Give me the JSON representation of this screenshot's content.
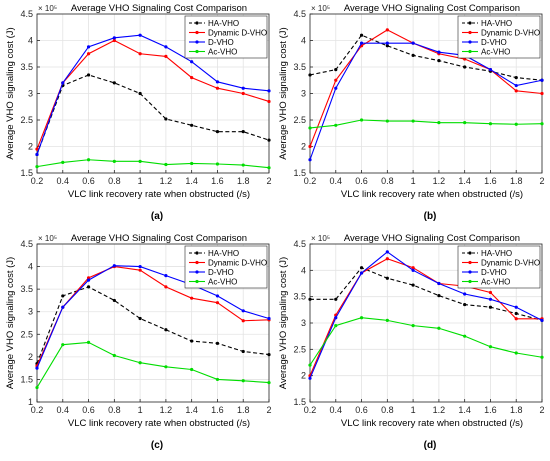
{
  "figure": {
    "x_ticks": [
      0.2,
      0.4,
      0.6,
      0.8,
      1,
      1.2,
      1.4,
      1.6,
      1.8,
      2
    ],
    "series_styles": [
      {
        "name": "HA-VHO",
        "color": "#000000",
        "dash": true,
        "marker": "dot"
      },
      {
        "name": "Dynamic D-VHO",
        "color": "#ff0000",
        "dash": false,
        "marker": "dot"
      },
      {
        "name": "D-VHO",
        "color": "#0000ff",
        "dash": false,
        "marker": "dot"
      },
      {
        "name": "Ac-VHO",
        "color": "#00dd00",
        "dash": false,
        "marker": "dot"
      }
    ]
  },
  "chart_data": [
    {
      "type": "line",
      "panel_label": "(a)",
      "title": "Average VHO Signaling Cost Comparison",
      "xlabel": "VLC link recovery rate when obstructed   (/s)",
      "ylabel": "Average VHO signaling cost   (J)",
      "y_exponent": "× 10⁵",
      "xlim": [
        0.2,
        2
      ],
      "ylim": [
        1.5,
        4.5
      ],
      "y_ticks": [
        1.5,
        2,
        2.5,
        3,
        3.5,
        4,
        4.5
      ],
      "y_tick_labels": [
        "1.5",
        "2",
        "2.5",
        "3",
        "3.5",
        "4",
        "4.5"
      ],
      "legend_position": "top-right",
      "grid": true,
      "x": [
        0.2,
        0.4,
        0.6,
        0.8,
        1.0,
        1.2,
        1.4,
        1.6,
        1.8,
        2.0
      ],
      "series": [
        {
          "name": "HA-VHO",
          "values": [
            1.85,
            3.15,
            3.35,
            3.2,
            3.0,
            2.52,
            2.4,
            2.28,
            2.28,
            2.12
          ]
        },
        {
          "name": "Dynamic D-VHO",
          "values": [
            1.95,
            3.2,
            3.75,
            4.0,
            3.75,
            3.7,
            3.3,
            3.1,
            3.0,
            2.85
          ]
        },
        {
          "name": "D-VHO",
          "values": [
            1.85,
            3.2,
            3.88,
            4.05,
            4.1,
            3.88,
            3.6,
            3.22,
            3.1,
            3.05
          ]
        },
        {
          "name": "Ac-VHO",
          "values": [
            1.62,
            1.7,
            1.75,
            1.72,
            1.72,
            1.66,
            1.68,
            1.67,
            1.65,
            1.6
          ]
        }
      ]
    },
    {
      "type": "line",
      "panel_label": "(b)",
      "title": "Average VHO Signaling Cost Comparison",
      "xlabel": "VLC link recovery rate when obstructed   (/s)",
      "ylabel": "Average VHO signaling cost   (J)",
      "y_exponent": "× 10⁵",
      "xlim": [
        0.2,
        2
      ],
      "ylim": [
        1.5,
        4.5
      ],
      "y_ticks": [
        1.5,
        2,
        2.5,
        3,
        3.5,
        4,
        4.5
      ],
      "y_tick_labels": [
        "1.5",
        "2",
        "2.5",
        "3",
        "3.5",
        "4",
        "4.5"
      ],
      "legend_position": "top-right",
      "grid": true,
      "x": [
        0.2,
        0.4,
        0.6,
        0.8,
        1.0,
        1.2,
        1.4,
        1.6,
        1.8,
        2.0
      ],
      "series": [
        {
          "name": "HA-VHO",
          "values": [
            3.35,
            3.45,
            4.1,
            3.9,
            3.72,
            3.62,
            3.5,
            3.42,
            3.3,
            3.25
          ]
        },
        {
          "name": "Dynamic D-VHO",
          "values": [
            2.0,
            3.25,
            3.9,
            4.2,
            3.95,
            3.75,
            3.65,
            3.45,
            3.05,
            3.0
          ]
        },
        {
          "name": "D-VHO",
          "values": [
            1.75,
            3.1,
            3.95,
            3.95,
            3.95,
            3.78,
            3.72,
            3.45,
            3.15,
            3.25
          ]
        },
        {
          "name": "Ac-VHO",
          "values": [
            2.35,
            2.4,
            2.5,
            2.48,
            2.48,
            2.45,
            2.45,
            2.43,
            2.42,
            2.43
          ]
        }
      ]
    },
    {
      "type": "line",
      "panel_label": "(c)",
      "title": "Average VHO Signaling Cost Comparison",
      "xlabel": "VLC link recovery rate when obstructed   (/s)",
      "ylabel": "Average VHO signaling cost   (J)",
      "y_exponent": "× 10⁵",
      "xlim": [
        0.2,
        2
      ],
      "ylim": [
        1,
        4.5
      ],
      "y_ticks": [
        1,
        1.5,
        2,
        2.5,
        3,
        3.5,
        4,
        4.5
      ],
      "y_tick_labels": [
        "1",
        "1.5",
        "2",
        "2.5",
        "3",
        "3.5",
        "4",
        "4.5"
      ],
      "legend_position": "top-right",
      "grid": true,
      "x": [
        0.2,
        0.4,
        0.6,
        0.8,
        1.0,
        1.2,
        1.4,
        1.6,
        1.8,
        2.0
      ],
      "series": [
        {
          "name": "HA-VHO",
          "values": [
            1.85,
            3.35,
            3.55,
            3.25,
            2.85,
            2.6,
            2.35,
            2.3,
            2.12,
            2.05
          ]
        },
        {
          "name": "Dynamic D-VHO",
          "values": [
            1.8,
            3.1,
            3.75,
            4.0,
            3.92,
            3.55,
            3.3,
            3.2,
            2.8,
            2.82
          ]
        },
        {
          "name": "D-VHO",
          "values": [
            1.75,
            3.1,
            3.7,
            4.02,
            4.0,
            3.8,
            3.6,
            3.35,
            3.02,
            2.85
          ]
        },
        {
          "name": "Ac-VHO",
          "values": [
            1.32,
            2.27,
            2.32,
            2.03,
            1.87,
            1.78,
            1.72,
            1.5,
            1.47,
            1.43
          ]
        }
      ]
    },
    {
      "type": "line",
      "panel_label": "(d)",
      "title": "Average VHO Signaling Cost Comparison",
      "xlabel": "VLC link recovery rate when obstructed   (/s)",
      "ylabel": "Average VHO signaling cost   (J)",
      "y_exponent": "× 10⁵",
      "xlim": [
        0.2,
        2
      ],
      "ylim": [
        1.5,
        4.5
      ],
      "y_ticks": [
        1.5,
        2,
        2.5,
        3,
        3.5,
        4,
        4.5
      ],
      "y_tick_labels": [
        "1.5",
        "2",
        "2.5",
        "3",
        "3.5",
        "4",
        "4.5"
      ],
      "legend_position": "top-right",
      "grid": true,
      "x": [
        0.2,
        0.4,
        0.6,
        0.8,
        1.0,
        1.2,
        1.4,
        1.6,
        1.8,
        2.0
      ],
      "series": [
        {
          "name": "HA-VHO",
          "values": [
            3.45,
            3.45,
            4.05,
            3.85,
            3.72,
            3.52,
            3.35,
            3.3,
            3.18,
            3.05
          ]
        },
        {
          "name": "Dynamic D-VHO",
          "values": [
            2.0,
            3.15,
            3.95,
            4.22,
            4.05,
            3.75,
            3.7,
            3.58,
            3.08,
            3.08
          ]
        },
        {
          "name": "D-VHO",
          "values": [
            1.95,
            3.1,
            3.95,
            4.35,
            4.0,
            3.75,
            3.55,
            3.45,
            3.3,
            3.05
          ]
        },
        {
          "name": "Ac-VHO",
          "values": [
            2.2,
            2.95,
            3.1,
            3.05,
            2.95,
            2.9,
            2.75,
            2.55,
            2.43,
            2.35
          ]
        }
      ]
    }
  ]
}
